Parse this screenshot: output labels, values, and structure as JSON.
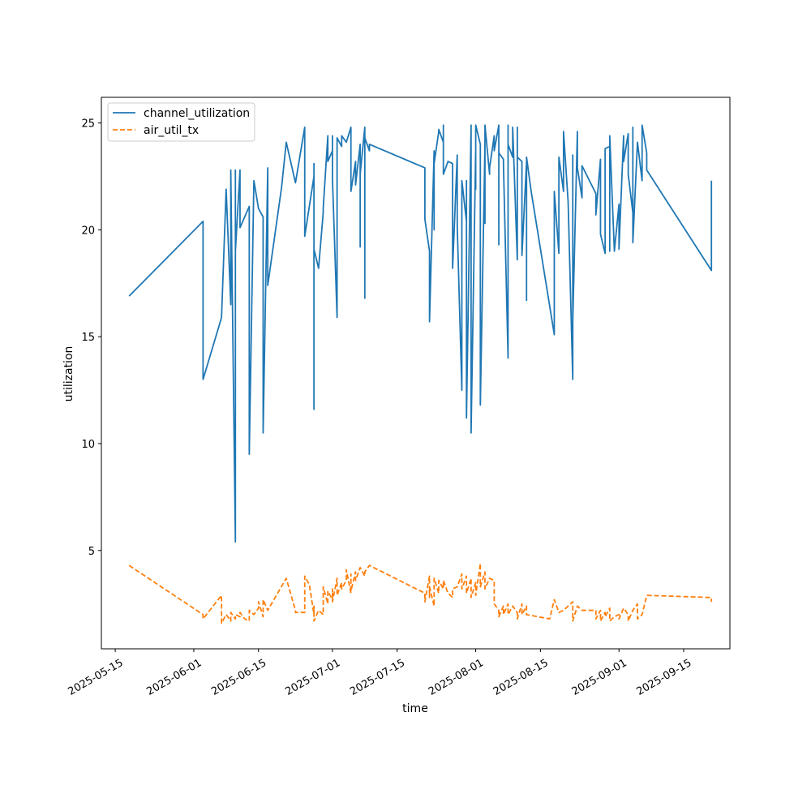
{
  "chart_data": {
    "type": "line",
    "title": "",
    "xlabel": "time",
    "ylabel": "utilization",
    "x_type": "date",
    "xlim": [
      "2025-05-12",
      "2025-09-25"
    ],
    "ylim": [
      0.4,
      26.2
    ],
    "x_ticks": [
      "2025-05-15",
      "2025-06-01",
      "2025-06-15",
      "2025-07-01",
      "2025-07-15",
      "2025-08-01",
      "2025-08-15",
      "2025-09-01",
      "2025-09-15"
    ],
    "y_ticks": [
      5,
      10,
      15,
      20,
      25
    ],
    "grid": false,
    "legend": "upper-left",
    "series": [
      {
        "name": "channel_utilization",
        "color": "#1f77b4",
        "style": "solid",
        "points": [
          [
            "2025-05-18",
            16.9
          ],
          [
            "2025-06-03",
            20.4
          ],
          [
            "2025-06-03",
            13.0
          ],
          [
            "2025-06-07",
            15.9
          ],
          [
            "2025-06-08",
            21.9
          ],
          [
            "2025-06-09",
            16.5
          ],
          [
            "2025-06-09",
            22.8
          ],
          [
            "2025-06-10",
            5.4
          ],
          [
            "2025-06-10",
            22.8
          ],
          [
            "2025-06-10",
            19.0
          ],
          [
            "2025-06-11",
            22.8
          ],
          [
            "2025-06-11",
            20.1
          ],
          [
            "2025-06-13",
            21.1
          ],
          [
            "2025-06-13",
            9.5
          ],
          [
            "2025-06-14",
            22.3
          ],
          [
            "2025-06-15",
            21.0
          ],
          [
            "2025-06-16",
            20.6
          ],
          [
            "2025-06-16",
            10.5
          ],
          [
            "2025-06-17",
            22.9
          ],
          [
            "2025-06-17",
            17.4
          ],
          [
            "2025-06-20",
            22.0
          ],
          [
            "2025-06-21",
            24.1
          ],
          [
            "2025-06-23",
            22.2
          ],
          [
            "2025-06-25",
            24.8
          ],
          [
            "2025-06-25",
            19.7
          ],
          [
            "2025-06-27",
            22.5
          ],
          [
            "2025-06-27",
            23.1
          ],
          [
            "2025-06-27",
            11.6
          ],
          [
            "2025-06-27",
            19.1
          ],
          [
            "2025-06-28",
            18.2
          ],
          [
            "2025-06-29",
            20.8
          ],
          [
            "2025-06-29",
            21.0
          ],
          [
            "2025-06-30",
            24.4
          ],
          [
            "2025-06-30",
            23.2
          ],
          [
            "2025-07-01",
            23.7
          ],
          [
            "2025-07-01",
            24.4
          ],
          [
            "2025-07-01",
            22.4
          ],
          [
            "2025-07-02",
            15.9
          ],
          [
            "2025-07-02",
            22.7
          ],
          [
            "2025-07-02",
            24.3
          ],
          [
            "2025-07-03",
            23.9
          ],
          [
            "2025-07-03",
            24.4
          ],
          [
            "2025-07-04",
            24.1
          ],
          [
            "2025-07-05",
            24.8
          ],
          [
            "2025-07-05",
            21.8
          ],
          [
            "2025-07-06",
            23.2
          ],
          [
            "2025-07-06",
            22.1
          ],
          [
            "2025-07-07",
            24.0
          ],
          [
            "2025-07-07",
            19.2
          ],
          [
            "2025-07-07",
            22.6
          ],
          [
            "2025-07-08",
            24.8
          ],
          [
            "2025-07-08",
            16.8
          ],
          [
            "2025-07-08",
            24.3
          ],
          [
            "2025-07-09",
            23.7
          ],
          [
            "2025-07-09",
            24.0
          ],
          [
            "2025-07-21",
            22.9
          ],
          [
            "2025-07-21",
            20.5
          ],
          [
            "2025-07-22",
            19.0
          ],
          [
            "2025-07-22",
            15.7
          ],
          [
            "2025-07-23",
            23.7
          ],
          [
            "2025-07-23",
            20.0
          ],
          [
            "2025-07-23",
            23.1
          ],
          [
            "2025-07-24",
            24.6
          ],
          [
            "2025-07-24",
            24.7
          ],
          [
            "2025-07-25",
            24.1
          ],
          [
            "2025-07-25",
            24.9
          ],
          [
            "2025-07-25",
            22.6
          ],
          [
            "2025-07-26",
            23.2
          ],
          [
            "2025-07-27",
            23.1
          ],
          [
            "2025-07-27",
            18.2
          ],
          [
            "2025-07-28",
            23.5
          ],
          [
            "2025-07-28",
            20.2
          ],
          [
            "2025-07-29",
            12.5
          ],
          [
            "2025-07-29",
            14.5
          ],
          [
            "2025-07-29",
            22.3
          ],
          [
            "2025-07-30",
            20.4
          ],
          [
            "2025-07-30",
            22.3
          ],
          [
            "2025-07-30",
            11.2
          ],
          [
            "2025-07-31",
            24.9
          ],
          [
            "2025-07-31",
            10.5
          ],
          [
            "2025-08-01",
            23.8
          ],
          [
            "2025-08-01",
            21.9
          ],
          [
            "2025-08-01",
            24.9
          ],
          [
            "2025-08-02",
            24.0
          ],
          [
            "2025-08-02",
            23.0
          ],
          [
            "2025-08-02",
            11.8
          ],
          [
            "2025-08-03",
            24.0
          ],
          [
            "2025-08-03",
            20.3
          ],
          [
            "2025-08-03",
            24.9
          ],
          [
            "2025-08-04",
            22.6
          ],
          [
            "2025-08-04",
            22.9
          ],
          [
            "2025-08-05",
            24.4
          ],
          [
            "2025-08-05",
            23.7
          ],
          [
            "2025-08-06",
            24.9
          ],
          [
            "2025-08-06",
            19.3
          ],
          [
            "2025-08-06",
            23.6
          ],
          [
            "2025-08-07",
            23.3
          ],
          [
            "2025-08-07",
            23.1
          ],
          [
            "2025-08-08",
            14.0
          ],
          [
            "2025-08-08",
            24.9
          ],
          [
            "2025-08-08",
            24.0
          ],
          [
            "2025-08-09",
            23.4
          ],
          [
            "2025-08-09",
            24.8
          ],
          [
            "2025-08-10",
            18.6
          ],
          [
            "2025-08-10",
            24.8
          ],
          [
            "2025-08-10",
            23.4
          ],
          [
            "2025-08-11",
            23.2
          ],
          [
            "2025-08-11",
            18.8
          ],
          [
            "2025-08-12",
            23.2
          ],
          [
            "2025-08-12",
            16.7
          ],
          [
            "2025-08-12",
            23.4
          ],
          [
            "2025-08-13",
            21.8
          ],
          [
            "2025-08-18",
            15.1
          ],
          [
            "2025-08-18",
            21.8
          ],
          [
            "2025-08-19",
            18.9
          ],
          [
            "2025-08-19",
            23.4
          ],
          [
            "2025-08-20",
            21.8
          ],
          [
            "2025-08-20",
            24.6
          ],
          [
            "2025-08-21",
            21.3
          ],
          [
            "2025-08-22",
            13.0
          ],
          [
            "2025-08-22",
            23.5
          ],
          [
            "2025-08-22",
            15.7
          ],
          [
            "2025-08-23",
            24.6
          ],
          [
            "2025-08-23",
            22.9
          ],
          [
            "2025-08-24",
            21.5
          ],
          [
            "2025-08-24",
            23.0
          ],
          [
            "2025-08-27",
            21.7
          ],
          [
            "2025-08-27",
            20.7
          ],
          [
            "2025-08-28",
            23.3
          ],
          [
            "2025-08-28",
            19.8
          ],
          [
            "2025-08-29",
            18.9
          ],
          [
            "2025-08-29",
            23.8
          ],
          [
            "2025-08-30",
            23.9
          ],
          [
            "2025-08-30",
            19.0
          ],
          [
            "2025-08-30",
            24.4
          ],
          [
            "2025-08-31",
            19.0
          ],
          [
            "2025-09-01",
            21.2
          ],
          [
            "2025-09-01",
            19.1
          ],
          [
            "2025-09-02",
            24.4
          ],
          [
            "2025-09-02",
            23.2
          ],
          [
            "2025-09-03",
            24.5
          ],
          [
            "2025-09-03",
            22.6
          ],
          [
            "2025-09-04",
            20.8
          ],
          [
            "2025-09-04",
            24.8
          ],
          [
            "2025-09-04",
            19.4
          ],
          [
            "2025-09-05",
            24.1
          ],
          [
            "2025-09-06",
            22.3
          ],
          [
            "2025-09-06",
            24.9
          ],
          [
            "2025-09-07",
            23.6
          ],
          [
            "2025-09-07",
            22.8
          ],
          [
            "2025-09-21",
            18.1
          ],
          [
            "2025-09-21",
            22.3
          ]
        ]
      },
      {
        "name": "air_util_tx",
        "color": "#ff7f0e",
        "style": "dashed",
        "points": [
          [
            "2025-05-18",
            4.3
          ],
          [
            "2025-06-03",
            2.0
          ],
          [
            "2025-06-03",
            1.8
          ],
          [
            "2025-06-07",
            2.9
          ],
          [
            "2025-06-07",
            1.6
          ],
          [
            "2025-06-08",
            2.0
          ],
          [
            "2025-06-09",
            1.7
          ],
          [
            "2025-06-09",
            2.1
          ],
          [
            "2025-06-10",
            1.8
          ],
          [
            "2025-06-10",
            2.0
          ],
          [
            "2025-06-11",
            1.9
          ],
          [
            "2025-06-11",
            2.1
          ],
          [
            "2025-06-12",
            1.8
          ],
          [
            "2025-06-13",
            1.7
          ],
          [
            "2025-06-13",
            2.2
          ],
          [
            "2025-06-14",
            2.0
          ],
          [
            "2025-06-15",
            2.3
          ],
          [
            "2025-06-15",
            2.6
          ],
          [
            "2025-06-16",
            1.9
          ],
          [
            "2025-06-16",
            2.7
          ],
          [
            "2025-06-17",
            2.2
          ],
          [
            "2025-06-21",
            3.7
          ],
          [
            "2025-06-23",
            2.2
          ],
          [
            "2025-06-23",
            2.1
          ],
          [
            "2025-06-25",
            2.1
          ],
          [
            "2025-06-25",
            3.8
          ],
          [
            "2025-06-26",
            3.4
          ],
          [
            "2025-06-27",
            2.0
          ],
          [
            "2025-06-27",
            2.4
          ],
          [
            "2025-06-27",
            1.7
          ],
          [
            "2025-06-28",
            2.2
          ],
          [
            "2025-06-29",
            2.0
          ],
          [
            "2025-06-29",
            3.3
          ],
          [
            "2025-06-30",
            2.5
          ],
          [
            "2025-06-30",
            3.1
          ],
          [
            "2025-07-01",
            2.7
          ],
          [
            "2025-07-01",
            3.2
          ],
          [
            "2025-07-01",
            2.6
          ],
          [
            "2025-07-02",
            3.7
          ],
          [
            "2025-07-02",
            2.9
          ],
          [
            "2025-07-03",
            3.5
          ],
          [
            "2025-07-03",
            3.2
          ],
          [
            "2025-07-04",
            3.6
          ],
          [
            "2025-07-04",
            4.1
          ],
          [
            "2025-07-05",
            3.0
          ],
          [
            "2025-07-05",
            3.9
          ],
          [
            "2025-07-05",
            3.1
          ],
          [
            "2025-07-06",
            4.0
          ],
          [
            "2025-07-06",
            3.6
          ],
          [
            "2025-07-07",
            4.2
          ],
          [
            "2025-07-08",
            3.8
          ],
          [
            "2025-07-08",
            4.0
          ],
          [
            "2025-07-09",
            4.3
          ],
          [
            "2025-07-21",
            3.0
          ],
          [
            "2025-07-21",
            2.6
          ],
          [
            "2025-07-22",
            3.8
          ],
          [
            "2025-07-22",
            2.8
          ],
          [
            "2025-07-22",
            3.3
          ],
          [
            "2025-07-23",
            2.4
          ],
          [
            "2025-07-23",
            3.7
          ],
          [
            "2025-07-24",
            3.0
          ],
          [
            "2025-07-24",
            3.6
          ],
          [
            "2025-07-25",
            3.2
          ],
          [
            "2025-07-25",
            3.6
          ],
          [
            "2025-07-26",
            3.0
          ],
          [
            "2025-07-27",
            2.8
          ],
          [
            "2025-07-27",
            3.2
          ],
          [
            "2025-07-28",
            3.3
          ],
          [
            "2025-07-29",
            3.9
          ],
          [
            "2025-07-29",
            3.2
          ],
          [
            "2025-07-30",
            3.8
          ],
          [
            "2025-07-30",
            3.0
          ],
          [
            "2025-07-31",
            3.7
          ],
          [
            "2025-07-31",
            2.8
          ],
          [
            "2025-08-01",
            3.5
          ],
          [
            "2025-08-01",
            2.9
          ],
          [
            "2025-08-02",
            4.4
          ],
          [
            "2025-08-02",
            3.3
          ],
          [
            "2025-08-03",
            4.0
          ],
          [
            "2025-08-03",
            3.2
          ],
          [
            "2025-08-04",
            3.7
          ],
          [
            "2025-08-05",
            3.6
          ],
          [
            "2025-08-05",
            2.5
          ],
          [
            "2025-08-06",
            2.2
          ],
          [
            "2025-08-06",
            1.9
          ],
          [
            "2025-08-07",
            2.4
          ],
          [
            "2025-08-07",
            2.0
          ],
          [
            "2025-08-08",
            2.5
          ],
          [
            "2025-08-08",
            2.0
          ],
          [
            "2025-08-09",
            2.4
          ],
          [
            "2025-08-10",
            2.1
          ],
          [
            "2025-08-10",
            1.8
          ],
          [
            "2025-08-11",
            2.5
          ],
          [
            "2025-08-11",
            2.0
          ],
          [
            "2025-08-12",
            2.4
          ],
          [
            "2025-08-12",
            2.0
          ],
          [
            "2025-08-17",
            1.8
          ],
          [
            "2025-08-18",
            2.7
          ],
          [
            "2025-08-19",
            2.1
          ],
          [
            "2025-08-20",
            2.2
          ],
          [
            "2025-08-22",
            2.6
          ],
          [
            "2025-08-22",
            1.7
          ],
          [
            "2025-08-23",
            2.4
          ],
          [
            "2025-08-24",
            2.2
          ],
          [
            "2025-08-27",
            2.2
          ],
          [
            "2025-08-27",
            1.8
          ],
          [
            "2025-08-28",
            2.2
          ],
          [
            "2025-08-28",
            1.7
          ],
          [
            "2025-08-29",
            2.1
          ],
          [
            "2025-08-29",
            1.9
          ],
          [
            "2025-08-30",
            2.3
          ],
          [
            "2025-08-30",
            1.7
          ],
          [
            "2025-08-31",
            1.9
          ],
          [
            "2025-09-01",
            2.0
          ],
          [
            "2025-09-01",
            1.8
          ],
          [
            "2025-09-02",
            2.3
          ],
          [
            "2025-09-03",
            2.0
          ],
          [
            "2025-09-03",
            1.7
          ],
          [
            "2025-09-04",
            2.2
          ],
          [
            "2025-09-05",
            2.5
          ],
          [
            "2025-09-05",
            1.8
          ],
          [
            "2025-09-06",
            2.0
          ],
          [
            "2025-09-07",
            2.9
          ],
          [
            "2025-09-21",
            2.8
          ],
          [
            "2025-09-21",
            2.6
          ]
        ]
      }
    ]
  }
}
